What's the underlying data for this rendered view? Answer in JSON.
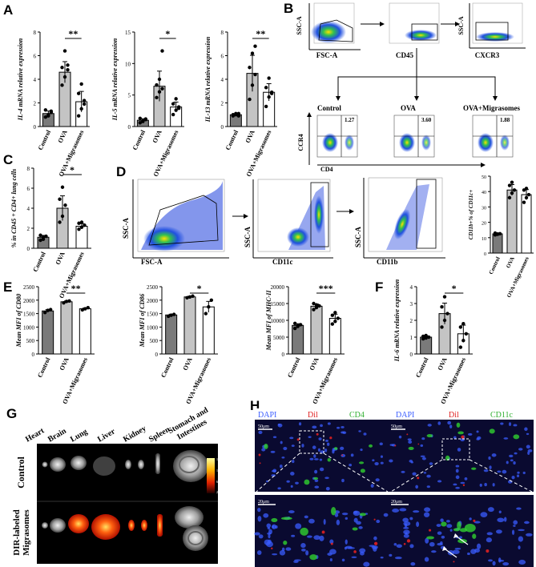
{
  "panels": {
    "A": {
      "label": "A",
      "charts": [
        {
          "ylabel": "IL-4 mRNA relative expression",
          "ticks": [
            "0",
            "2",
            "4",
            "6",
            "8"
          ],
          "sig": "**",
          "categories": [
            "Control",
            "OVA",
            "OVA+ Migrasomes"
          ],
          "means": [
            1.1,
            4.6,
            2.1
          ],
          "points": [
            [
              0.8,
              1.0,
              1.2,
              1.4,
              0.9,
              1.3
            ],
            [
              3.5,
              4.2,
              4.8,
              5.0,
              6.4,
              5.2
            ],
            [
              0.9,
              1.5,
              2.2,
              2.8,
              3.6,
              1.9
            ]
          ]
        },
        {
          "ylabel": "IL-5 mRNA relative expression",
          "ticks": [
            "0",
            "5",
            "10",
            "15"
          ],
          "sig": "*",
          "categories": [
            "Control",
            "OVA",
            "OVA+ Migrasomes"
          ],
          "means": [
            1.0,
            6.4,
            3.1
          ],
          "points": [
            [
              0.6,
              0.9,
              1.1,
              1.3,
              0.8,
              1.2
            ],
            [
              4.6,
              5.5,
              6.0,
              6.6,
              7.5,
              12.0
            ],
            [
              1.9,
              2.6,
              3.1,
              3.6,
              4.4,
              2.9
            ]
          ]
        },
        {
          "ylabel": "IL-13 mRNA relative expression",
          "ticks": [
            "0",
            "2",
            "4",
            "6",
            "8"
          ],
          "sig": "**",
          "categories": [
            "Control",
            "OVA",
            "OVA+ Migrasomes"
          ],
          "means": [
            1.0,
            4.5,
            2.9
          ],
          "points": [
            [
              0.9,
              1.0,
              1.1,
              1.0,
              1.1,
              0.9
            ],
            [
              2.3,
              3.5,
              4.4,
              5.0,
              6.2,
              6.8
            ],
            [
              1.7,
              2.5,
              2.9,
              3.3,
              4.1,
              2.8
            ]
          ]
        }
      ]
    },
    "B": {
      "label": "B",
      "gating": [
        "FSC-A",
        "CD45",
        "CXCR3"
      ],
      "gating_y": [
        "SSC-A",
        "SSC-A"
      ],
      "groups": [
        {
          "name": "Control",
          "pct": "1.27"
        },
        {
          "name": "OVA",
          "pct": "3.60"
        },
        {
          "name": "OVA+Migrasomes",
          "pct": "1.88"
        }
      ],
      "ccr4": "CCR4",
      "cd4": "CD4"
    },
    "C": {
      "label": "C",
      "ylabel": "% in CD45 + CD4+ lung cells",
      "ticks": [
        "0",
        "2",
        "4",
        "6",
        "8"
      ],
      "sig": "*",
      "categories": [
        "Control",
        "OVA",
        "OVA+ Migrasomes"
      ],
      "means": [
        1.1,
        4.0,
        2.2
      ],
      "points": [
        [
          0.8,
          0.9,
          1.2,
          1.3,
          1.1
        ],
        [
          2.6,
          3.2,
          4.3,
          4.9,
          6.1
        ],
        [
          1.9,
          2.1,
          2.3,
          2.5,
          2.6
        ]
      ]
    },
    "D": {
      "label": "D",
      "plots": [
        {
          "x": "FSC-A",
          "y": "SSC-A"
        },
        {
          "x": "CD11c",
          "y": "SSC-A"
        },
        {
          "x": "CD11b",
          "y": "SSC-A"
        }
      ],
      "chart": {
        "ylabel": "CD11b+% of CD11c+",
        "ticks": [
          "0",
          "10",
          "20",
          "30",
          "40",
          "50"
        ],
        "categories": [
          "Control",
          "OVA",
          "OVA+ Migrasomes"
        ],
        "means": [
          12.5,
          41,
          38
        ],
        "points": [
          [
            11.8,
            12.2,
            12.6,
            13.0,
            12.4
          ],
          [
            36,
            39,
            41,
            44,
            46
          ],
          [
            33,
            36,
            38,
            41,
            42
          ]
        ]
      }
    },
    "E": {
      "label": "E",
      "charts": [
        {
          "ylabel": "Mean MFI of CD80",
          "ticks": [
            "0",
            "500",
            "1000",
            "1500",
            "2000",
            "2500"
          ],
          "sig": "**",
          "categories": [
            "Control",
            "OVA",
            "OVA+ Migrasomes"
          ],
          "means": [
            1600,
            1940,
            1680
          ],
          "points": [
            [
              1540,
              1620,
              1650
            ],
            [
              1900,
              1950,
              1970
            ],
            [
              1640,
              1680,
              1720
            ]
          ]
        },
        {
          "ylabel": "Mean MFI of CD86",
          "ticks": [
            "0",
            "500",
            "1000",
            "1500",
            "2000",
            "2500"
          ],
          "sig": "*",
          "categories": [
            "Control",
            "OVA",
            "OVA+ Migrasomes"
          ],
          "means": [
            1450,
            2120,
            1750
          ],
          "points": [
            [
              1400,
              1440,
              1470
            ],
            [
              2090,
              2120,
              2150
            ],
            [
              1500,
              1750,
              2000
            ]
          ]
        },
        {
          "ylabel": "Mean MFI of MHC-II",
          "ticks": [
            "0",
            "5000",
            "10000",
            "15000",
            "20000"
          ],
          "sig": "***",
          "categories": [
            "Control",
            "OVA",
            "OVA+ Migrasomes"
          ],
          "means": [
            8500,
            14200,
            10600
          ],
          "points": [
            [
              7600,
              8200,
              8700,
              9100,
              8400
            ],
            [
              13200,
              13800,
              14300,
              15000,
              14600
            ],
            [
              8900,
              9700,
              10600,
              11500,
              12300
            ]
          ]
        }
      ]
    },
    "F": {
      "label": "F",
      "ylabel": "IL-6 mRNA relative expression",
      "ticks": [
        "0",
        "1",
        "2",
        "3",
        "4"
      ],
      "sig": "*",
      "categories": [
        "Control",
        "OVA",
        "OVA+ Migrasomes"
      ],
      "means": [
        1.0,
        2.4,
        1.2
      ],
      "points": [
        [
          0.9,
          0.95,
          1.0,
          1.05,
          1.1
        ],
        [
          1.6,
          2.0,
          2.4,
          2.8,
          3.4
        ],
        [
          0.4,
          0.8,
          1.2,
          1.6,
          1.8
        ]
      ]
    },
    "G": {
      "label": "G",
      "organs": [
        "Heart",
        "Brain",
        "Lung",
        "Liver",
        "Kidney",
        "Spleen",
        "Stomach and Intestines"
      ],
      "rows": [
        "Control",
        "DIR-labeled Migrasomes"
      ],
      "scale": [
        "1.4e+004",
        "1.0e+004",
        "6.4e+003",
        "2.7e+003"
      ]
    },
    "H": {
      "label": "H",
      "left": {
        "dapi": "DAPI",
        "dil": "Dil",
        "marker": "CD4",
        "bar_top": "50μm",
        "bar_bottom": "20μm"
      },
      "right": {
        "dapi": "DAPI",
        "dil": "Dil",
        "marker": "CD11c",
        "bar_top": "50μm",
        "bar_bottom": "20μm"
      }
    }
  },
  "colors": {
    "control": "#7a7a7a",
    "ova": "#c4c4c4",
    "mig": "#ffffff",
    "dapi": "#3a5cff",
    "dil": "#e02020",
    "green": "#30d030"
  }
}
